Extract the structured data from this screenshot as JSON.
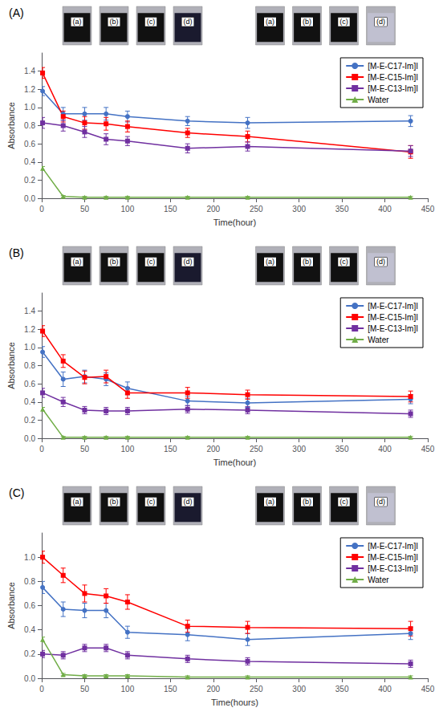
{
  "chart_data": [
    {
      "type": "line",
      "title": "(A)",
      "xlabel": "Time(hour)",
      "ylabel": "Absorbance",
      "xlim": [
        0,
        450
      ],
      "xticks": [
        0,
        50,
        100,
        150,
        200,
        250,
        300,
        350,
        400,
        450
      ],
      "ylim": [
        0,
        1.6
      ],
      "yticks": [
        {
          "value": 0,
          "label": "0.0"
        },
        0.2,
        0.4,
        0.6,
        0.8,
        {
          "value": 1.0,
          "label": "1.0"
        },
        1.2,
        1.4
      ],
      "grid": false,
      "legend": "upper right",
      "x": [
        1,
        25,
        50,
        75,
        100,
        170,
        240,
        430
      ],
      "series": [
        {
          "name": "[M-E-C17-Im]I",
          "color": "#4472C4",
          "marker": "circle",
          "values": [
            1.18,
            0.93,
            0.93,
            0.93,
            0.9,
            0.85,
            0.83,
            0.85
          ],
          "yerr": [
            0.05,
            0.07,
            0.07,
            0.07,
            0.06,
            0.05,
            0.06,
            0.06
          ]
        },
        {
          "name": "[M-E-C15-Im]I",
          "color": "#FF0000",
          "marker": "square",
          "values": [
            1.38,
            0.9,
            0.83,
            0.82,
            0.79,
            0.72,
            0.68,
            0.51
          ],
          "yerr": [
            0.06,
            0.06,
            0.07,
            0.07,
            0.06,
            0.05,
            0.06,
            0.07
          ]
        },
        {
          "name": "[M-E-C13-Im]I",
          "color": "#7030A0",
          "marker": "square",
          "values": [
            0.83,
            0.8,
            0.73,
            0.65,
            0.63,
            0.55,
            0.57,
            0.52
          ],
          "yerr": [
            0.06,
            0.06,
            0.06,
            0.06,
            0.05,
            0.05,
            0.05,
            0.06
          ]
        },
        {
          "name": "Water",
          "color": "#70AD47",
          "marker": "triangle",
          "values": [
            0.33,
            0.02,
            0.01,
            0.01,
            0.01,
            0.01,
            0.01,
            0.01
          ],
          "yerr": [
            0.02,
            0.01,
            0.01,
            0.01,
            0.01,
            0.01,
            0.01,
            0.01
          ]
        }
      ],
      "annotations": [
        {
          "text": "(a)",
          "color": "#111111"
        },
        {
          "text": "(b)",
          "color": "#111111"
        },
        {
          "text": "(c)",
          "color": "#111111"
        },
        {
          "text": "(d)",
          "color": "#1a1a2e"
        },
        {
          "text": "(a)",
          "color": "#111111"
        },
        {
          "text": "(b)",
          "color": "#111111"
        },
        {
          "text": "(c)",
          "color": "#111111"
        },
        {
          "text": "(d)",
          "color": "#c0c0d0"
        }
      ]
    },
    {
      "type": "line",
      "title": "(B)",
      "xlabel": "Time(hour)",
      "ylabel": "Absorbance",
      "xlim": [
        0,
        450
      ],
      "xticks": [
        0,
        50,
        100,
        150,
        200,
        250,
        300,
        350,
        400,
        450
      ],
      "ylim": [
        0,
        1.6
      ],
      "yticks": [
        {
          "value": 0,
          "label": "0.0"
        },
        0.2,
        0.4,
        0.6,
        0.8,
        {
          "value": 1.0,
          "label": "1.0"
        },
        1.2,
        1.4
      ],
      "grid": false,
      "legend": "upper right",
      "x": [
        1,
        25,
        50,
        75,
        100,
        170,
        240,
        430
      ],
      "series": [
        {
          "name": "[M-E-C17-Im]I",
          "color": "#4472C4",
          "marker": "circle",
          "values": [
            0.95,
            0.65,
            0.68,
            0.65,
            0.55,
            0.41,
            0.39,
            0.43
          ],
          "yerr": [
            0.06,
            0.08,
            0.07,
            0.07,
            0.07,
            0.05,
            0.05,
            0.05
          ]
        },
        {
          "name": "[M-E-C15-Im]I",
          "color": "#FF0000",
          "marker": "square",
          "values": [
            1.18,
            0.85,
            0.67,
            0.68,
            0.5,
            0.5,
            0.48,
            0.46
          ],
          "yerr": [
            0.06,
            0.07,
            0.07,
            0.07,
            0.06,
            0.06,
            0.05,
            0.06
          ]
        },
        {
          "name": "[M-E-C13-Im]I",
          "color": "#7030A0",
          "marker": "square",
          "values": [
            0.5,
            0.4,
            0.31,
            0.3,
            0.3,
            0.32,
            0.31,
            0.27
          ],
          "yerr": [
            0.05,
            0.05,
            0.04,
            0.04,
            0.04,
            0.04,
            0.04,
            0.04
          ]
        },
        {
          "name": "Water",
          "color": "#70AD47",
          "marker": "triangle",
          "values": [
            0.32,
            0.01,
            0.01,
            0.01,
            0.01,
            0.01,
            0.01,
            0.01
          ],
          "yerr": [
            0.02,
            0.01,
            0.01,
            0.01,
            0.01,
            0.01,
            0.01,
            0.01
          ]
        }
      ],
      "annotations": [
        {
          "text": "(a)",
          "color": "#111111"
        },
        {
          "text": "(b)",
          "color": "#111111"
        },
        {
          "text": "(c)",
          "color": "#111111"
        },
        {
          "text": "(d)",
          "color": "#1a1a2e"
        },
        {
          "text": "(a)",
          "color": "#111111"
        },
        {
          "text": "(b)",
          "color": "#111111"
        },
        {
          "text": "(c)",
          "color": "#111111"
        },
        {
          "text": "(d)",
          "color": "#c0c0d0"
        }
      ]
    },
    {
      "type": "line",
      "title": "(C)",
      "xlabel": "Time(hours)",
      "ylabel": "Absorbance",
      "xlim": [
        0,
        450
      ],
      "xticks": [
        0,
        50,
        100,
        150,
        200,
        250,
        300,
        350,
        400,
        450
      ],
      "ylim": [
        0,
        1.2
      ],
      "yticks": [
        {
          "value": 0,
          "label": "0.0"
        },
        0.2,
        0.4,
        0.6,
        0.8,
        {
          "value": 1.0,
          "label": "1.0"
        }
      ],
      "grid": false,
      "legend": "upper right",
      "x": [
        1,
        25,
        50,
        75,
        100,
        170,
        240,
        430
      ],
      "series": [
        {
          "name": "[M-E-C17-Im]I",
          "color": "#4472C4",
          "marker": "circle",
          "values": [
            0.75,
            0.57,
            0.56,
            0.56,
            0.38,
            0.36,
            0.32,
            0.37
          ],
          "yerr": [
            0.05,
            0.06,
            0.06,
            0.06,
            0.05,
            0.05,
            0.05,
            0.05
          ]
        },
        {
          "name": "[M-E-C15-Im]I",
          "color": "#FF0000",
          "marker": "square",
          "values": [
            1.0,
            0.85,
            0.7,
            0.68,
            0.63,
            0.43,
            0.42,
            0.41
          ],
          "yerr": [
            0.05,
            0.06,
            0.07,
            0.06,
            0.06,
            0.05,
            0.05,
            0.06
          ]
        },
        {
          "name": "[M-E-C13-Im]I",
          "color": "#7030A0",
          "marker": "square",
          "values": [
            0.2,
            0.19,
            0.25,
            0.25,
            0.19,
            0.16,
            0.14,
            0.12
          ],
          "yerr": [
            0.03,
            0.03,
            0.03,
            0.03,
            0.03,
            0.03,
            0.03,
            0.03
          ]
        },
        {
          "name": "Water",
          "color": "#70AD47",
          "marker": "triangle",
          "values": [
            0.32,
            0.03,
            0.02,
            0.02,
            0.02,
            0.01,
            0.01,
            0.01
          ],
          "yerr": [
            0.02,
            0.01,
            0.01,
            0.01,
            0.01,
            0.01,
            0.01,
            0.01
          ]
        }
      ],
      "annotations": [
        {
          "text": "(a)",
          "color": "#111111"
        },
        {
          "text": "(b)",
          "color": "#111111"
        },
        {
          "text": "(c)",
          "color": "#111111"
        },
        {
          "text": "(d)",
          "color": "#1a1a2e"
        },
        {
          "text": "(a)",
          "color": "#111111"
        },
        {
          "text": "(b)",
          "color": "#111111"
        },
        {
          "text": "(c)",
          "color": "#111111"
        },
        {
          "text": "(d)",
          "color": "#c0c0d0"
        }
      ]
    }
  ]
}
